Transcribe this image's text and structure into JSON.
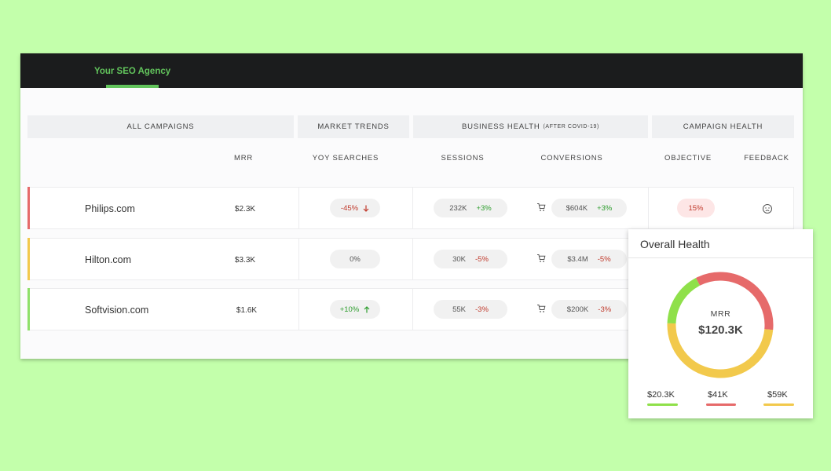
{
  "header": {
    "agency_tab": "Your SEO Agency"
  },
  "groups": {
    "all_campaigns": "ALL CAMPAIGNS",
    "market_trends": "MARKET TRENDS",
    "business_health": "BUSINESS HEALTH",
    "business_health_note": "(AFTER COVID-19)",
    "campaign_health": "CAMPAIGN HEALTH"
  },
  "columns": {
    "mrr": "MRR",
    "yoy_searches": "YOY SEARCHES",
    "sessions": "SESSIONS",
    "conversions": "CONVERSIONS",
    "objective": "OBJECTIVE",
    "feedback": "FEEDBACK"
  },
  "rows": [
    {
      "site": "Philips.com",
      "mrr": "$2.3K",
      "yoy": "-45%",
      "yoy_trend": "down",
      "sessions": "232K",
      "sessions_change": "+3%",
      "conversions": "$604K",
      "conversions_change": "+3%",
      "objective": "15%",
      "accent": "#e66a6a"
    },
    {
      "site": "Hilton.com",
      "mrr": "$3.3K",
      "yoy": "0%",
      "yoy_trend": "flat",
      "sessions": "30K",
      "sessions_change": "-5%",
      "conversions": "$3.4M",
      "conversions_change": "-5%",
      "accent": "#f2c94c"
    },
    {
      "site": "Softvision.com",
      "mrr": "$1.6K",
      "yoy": "+10%",
      "yoy_trend": "up",
      "sessions": "55K",
      "sessions_change": "-3%",
      "conversions": "$200K",
      "conversions_change": "-3%",
      "accent": "#8fe06a"
    }
  ],
  "overall_health": {
    "title": "Overall Health",
    "center_label": "MRR",
    "center_value": "$120.3K",
    "segments": [
      {
        "label": "$20.3K",
        "value": 20.3,
        "color": "#8fe04a"
      },
      {
        "label": "$41K",
        "value": 41,
        "color": "#e66a6a"
      },
      {
        "label": "$59K",
        "value": 59,
        "color": "#f2c94c"
      }
    ]
  }
}
